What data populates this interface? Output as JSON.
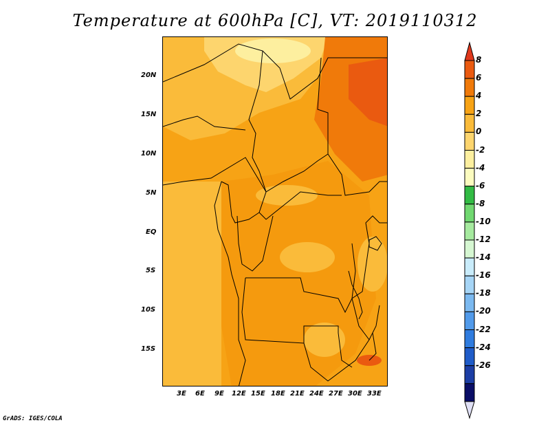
{
  "title": "Temperature at 600hPa [C], VT: 2019110312",
  "credit": "GrADS: IGES/COLA",
  "map": {
    "lat_ticks": [
      "20N",
      "15N",
      "10N",
      "5N",
      "EQ",
      "5S",
      "10S",
      "15S"
    ],
    "lon_ticks": [
      "3E",
      "6E",
      "9E",
      "12E",
      "15E",
      "18E",
      "21E",
      "24E",
      "27E",
      "30E",
      "33E"
    ]
  },
  "colorbar": {
    "labels": [
      "8",
      "6",
      "4",
      "2",
      "0",
      "-2",
      "-4",
      "-6",
      "-8",
      "-10",
      "-12",
      "-14",
      "-16",
      "-18",
      "-20",
      "-22",
      "-24",
      "-26"
    ],
    "colors": [
      "#e0381c",
      "#ea5a10",
      "#f07a0a",
      "#f7a315",
      "#fabb3a",
      "#fdd56e",
      "#fdef9f",
      "#fcfcbf",
      "#32bb44",
      "#70d870",
      "#a6ea9f",
      "#d6f7d2",
      "#c9ecfb",
      "#a6d5f6",
      "#7bb9f0",
      "#519aea",
      "#2f7cdf",
      "#1f5cc9",
      "#1c3ea5",
      "#0a0e67",
      "#e0e0f5"
    ]
  }
}
